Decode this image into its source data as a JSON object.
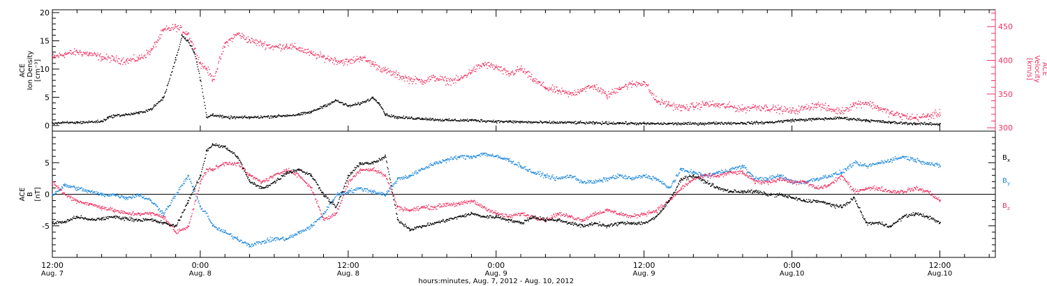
{
  "figure": {
    "xaxis_title": "hours:minutes, Aug.  7, 2012 - Aug. 10, 2012",
    "time_ticks": [
      {
        "h": 0,
        "time": "12:00",
        "date": "Aug. 7"
      },
      {
        "h": 12,
        "time": "0:00",
        "date": "Aug. 8"
      },
      {
        "h": 24,
        "time": "12:00",
        "date": "Aug. 8"
      },
      {
        "h": 36,
        "time": "0:00",
        "date": "Aug. 9"
      },
      {
        "h": 48,
        "time": "12:00",
        "date": "Aug. 9"
      },
      {
        "h": 60,
        "time": "0:00",
        "date": "Aug.10"
      },
      {
        "h": 72,
        "time": "12:00",
        "date": "Aug.10"
      }
    ]
  },
  "colors": {
    "black": "#000000",
    "red": "#ee3060",
    "blue": "#1a86dd"
  },
  "chart_data": [
    {
      "type": "scatter",
      "panel": "plasma",
      "x_unit": "hours since Aug. 7 12:00",
      "xlim": [
        0,
        76.5
      ],
      "left_axis": {
        "label_lines": [
          "ACE",
          "Ion Density",
          "[cm⁻³]"
        ],
        "ylim": [
          -1,
          20.5
        ],
        "ticks": [
          0,
          5,
          10,
          15,
          20
        ]
      },
      "right_axis": {
        "label_lines": [
          "ACE",
          "Velocity",
          "[km/s]"
        ],
        "ylim": [
          295,
          475
        ],
        "ticks": [
          300,
          350,
          400,
          450
        ]
      },
      "series": [
        {
          "axis": "left",
          "color": "black",
          "x": [
            0,
            2,
            4,
            4.5,
            5,
            6,
            7,
            8,
            9,
            10,
            10.5,
            11,
            11.5,
            12,
            12.5,
            13,
            14,
            16,
            18,
            20,
            21,
            22,
            23,
            24,
            25,
            26,
            26.5,
            27,
            28,
            30,
            32,
            34,
            36,
            38,
            40,
            42,
            44,
            46,
            48,
            50,
            52,
            54,
            56,
            58,
            60,
            62,
            64,
            66,
            68,
            70,
            72
          ],
          "y": [
            0.5,
            0.6,
            0.8,
            1.5,
            1.8,
            2.0,
            2.3,
            3.0,
            5.0,
            12.0,
            16.0,
            15.0,
            13.0,
            8.0,
            1.5,
            2.0,
            1.5,
            1.5,
            1.7,
            2.0,
            2.5,
            3.5,
            4.5,
            3.5,
            4.0,
            5.0,
            4.0,
            2.0,
            1.5,
            1.3,
            1.0,
            1.0,
            0.8,
            0.7,
            0.6,
            0.6,
            0.5,
            0.5,
            0.4,
            0.4,
            0.4,
            0.5,
            0.5,
            0.6,
            1.0,
            1.2,
            1.4,
            1.0,
            0.6,
            0.4,
            0.3
          ]
        },
        {
          "axis": "right",
          "color": "red",
          "x": [
            0,
            1,
            2,
            3,
            4,
            5,
            6,
            7,
            8,
            9,
            10,
            11,
            12,
            12.5,
            13,
            14,
            15,
            16,
            17,
            18,
            19,
            20,
            21,
            22,
            23,
            24,
            25,
            26,
            27,
            28,
            29,
            30,
            31,
            32,
            33,
            34,
            35,
            36,
            37,
            38,
            39,
            40,
            41,
            42,
            43,
            44,
            45,
            46,
            47,
            48,
            49,
            50,
            51,
            52,
            53,
            54,
            55,
            56,
            57,
            58,
            59,
            60,
            61,
            62,
            63,
            64,
            65,
            66,
            67,
            68,
            69,
            70,
            71,
            72
          ],
          "y": [
            405,
            410,
            413,
            410,
            405,
            402,
            400,
            403,
            415,
            445,
            450,
            440,
            395,
            388,
            372,
            425,
            440,
            430,
            425,
            420,
            422,
            418,
            410,
            405,
            400,
            398,
            405,
            395,
            385,
            378,
            372,
            370,
            375,
            370,
            372,
            385,
            395,
            390,
            380,
            388,
            372,
            360,
            355,
            350,
            358,
            362,
            348,
            360,
            365,
            368,
            340,
            335,
            330,
            332,
            336,
            334,
            332,
            328,
            332,
            330,
            328,
            325,
            330,
            335,
            328,
            325,
            335,
            338,
            330,
            322,
            318,
            315,
            318,
            322
          ]
        }
      ]
    },
    {
      "type": "scatter",
      "panel": "magnetic field",
      "x_unit": "hours since Aug. 7 12:00",
      "xlim": [
        0,
        76.5
      ],
      "axis": {
        "label_lines": [
          "ACE",
          "B",
          "[nT]"
        ],
        "ylim": [
          -10,
          10
        ],
        "ticks": [
          -5,
          0,
          5
        ]
      },
      "zero_line": true,
      "legend": [
        {
          "base": "B",
          "sub": "x",
          "color": "black"
        },
        {
          "base": "B",
          "sub": "y",
          "color": "blue"
        },
        {
          "base": "B",
          "sub": "z",
          "color": "red"
        }
      ],
      "series": [
        {
          "name": "Bx",
          "color": "black",
          "x": [
            0,
            1,
            2,
            3,
            4,
            5,
            6,
            7,
            8,
            9,
            10,
            11,
            12,
            12.5,
            13,
            14,
            15,
            16,
            17,
            18,
            19,
            20,
            21,
            22,
            23,
            24,
            25,
            26,
            27,
            28,
            29,
            30,
            31,
            32,
            33,
            34,
            35,
            36,
            37,
            38,
            39,
            40,
            41,
            42,
            43,
            44,
            45,
            46,
            47,
            48,
            49,
            50,
            51,
            52,
            53,
            54,
            55,
            56,
            57,
            58,
            59,
            60,
            61,
            62,
            63,
            64,
            65,
            66,
            67,
            68,
            69,
            70,
            71,
            72
          ],
          "y": [
            -4.5,
            -4.3,
            -3.5,
            -4,
            -3.8,
            -3.5,
            -3.8,
            -4,
            -4,
            -4.5,
            -5,
            -1,
            3,
            7,
            8,
            7.5,
            6,
            2,
            1,
            2,
            3.5,
            4,
            3,
            0,
            -2,
            3,
            5,
            5,
            6,
            -4,
            -5.5,
            -5,
            -4.5,
            -4,
            -3.5,
            -3,
            -3.5,
            -3.5,
            -4,
            -4.5,
            -3.5,
            -4,
            -4,
            -4.5,
            -5,
            -4.5,
            -5,
            -4.5,
            -4.5,
            -4.5,
            -3.5,
            -1,
            2.5,
            3,
            2,
            1,
            0.5,
            0.5,
            0.5,
            0,
            0,
            -0.5,
            -1,
            -1,
            -1.5,
            -2,
            -0.5,
            -4.5,
            -4.5,
            -5,
            -3.5,
            -3,
            -3.5,
            -4.5
          ]
        },
        {
          "name": "By",
          "color": "blue",
          "x": [
            0,
            1,
            2,
            3,
            4,
            5,
            6,
            7,
            8,
            9,
            10,
            11,
            12,
            12.5,
            13,
            14,
            15,
            16,
            17,
            18,
            19,
            20,
            21,
            22,
            23,
            24,
            25,
            26,
            27,
            28,
            29,
            30,
            31,
            32,
            33,
            34,
            35,
            36,
            37,
            38,
            39,
            40,
            41,
            42,
            43,
            44,
            45,
            46,
            47,
            48,
            49,
            50,
            51,
            52,
            53,
            54,
            55,
            56,
            57,
            58,
            59,
            60,
            61,
            62,
            63,
            64,
            65,
            66,
            67,
            68,
            69,
            70,
            71,
            72
          ],
          "y": [
            0,
            1.5,
            1,
            0.5,
            0,
            0,
            -0.5,
            0,
            -1,
            -3,
            0,
            3,
            -2,
            -3,
            -5,
            -6,
            -7,
            -8,
            -7.5,
            -7,
            -7,
            -6,
            -5,
            -3,
            0,
            0.5,
            1,
            0.5,
            0,
            2.5,
            3,
            4,
            5,
            5.5,
            6,
            6,
            6.5,
            6,
            5.5,
            4.5,
            3.5,
            3,
            2.5,
            3,
            2,
            2,
            2.5,
            3,
            2.5,
            3,
            2.5,
            1,
            4,
            3.5,
            3,
            3.5,
            4,
            4.5,
            2.5,
            2.5,
            3,
            2,
            2,
            2.5,
            3,
            3.5,
            5,
            4.5,
            5,
            5.5,
            6,
            5.5,
            5,
            4.5
          ]
        },
        {
          "name": "Bz",
          "color": "red",
          "x": [
            0,
            1,
            2,
            3,
            4,
            5,
            6,
            7,
            8,
            9,
            10,
            11,
            12,
            12.5,
            13,
            14,
            15,
            16,
            17,
            18,
            19,
            20,
            21,
            22,
            23,
            24,
            25,
            26,
            27,
            28,
            29,
            30,
            31,
            32,
            33,
            34,
            35,
            36,
            37,
            38,
            39,
            40,
            41,
            42,
            43,
            44,
            45,
            46,
            47,
            48,
            49,
            50,
            51,
            52,
            53,
            54,
            55,
            56,
            57,
            58,
            59,
            60,
            61,
            62,
            63,
            64,
            65,
            66,
            67,
            68,
            69,
            70,
            71,
            72
          ],
          "y": [
            2,
            0,
            -1,
            -1.5,
            -2,
            -2.5,
            -3,
            -3,
            -3,
            -3.5,
            -6,
            -5,
            2,
            4,
            4,
            5,
            5,
            3,
            2,
            3,
            4,
            3,
            1,
            -4,
            -3,
            2,
            4,
            4,
            3,
            -2,
            -2.5,
            -2,
            -2,
            -1.5,
            -1.5,
            -1,
            -2,
            -3,
            -3.5,
            -3,
            -3.5,
            -4,
            -3,
            -3.5,
            -4,
            -3,
            -2.5,
            -3,
            -3.5,
            -3,
            -2.5,
            -1,
            1,
            2.5,
            3,
            3,
            3.5,
            3.5,
            2,
            2,
            2.5,
            2,
            2,
            1,
            1.5,
            3,
            0.5,
            1,
            1,
            0.5,
            0.5,
            1,
            0.5,
            -1
          ]
        }
      ]
    }
  ]
}
